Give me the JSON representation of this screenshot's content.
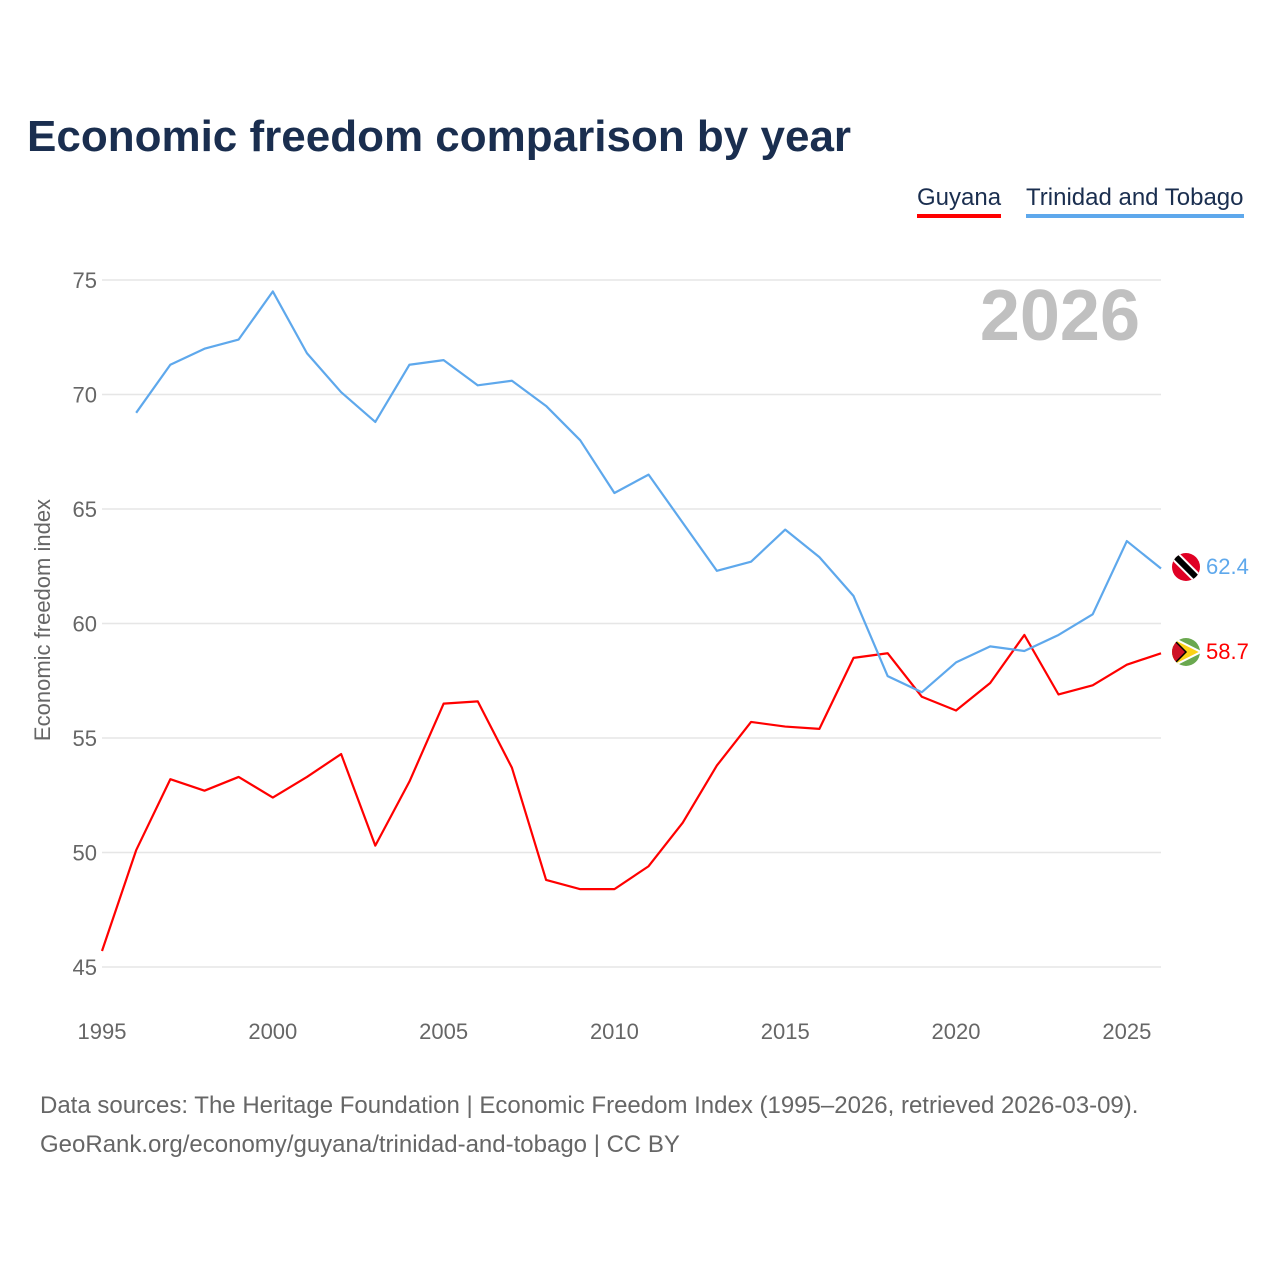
{
  "title": "Economic freedom comparison by year",
  "year_badge": "2026",
  "source_line1": "Data sources: The Heritage Foundation | Economic Freedom Index (1995–2026, retrieved 2026-03-09).",
  "source_line2": "GeoRank.org/economy/guyana/trinidad-and-tobago | CC BY",
  "chart_data": {
    "type": "line",
    "title": "Economic freedom comparison by year",
    "xlabel": "",
    "ylabel": "Economic freedom index",
    "xlim": [
      1995,
      2026
    ],
    "ylim": [
      45,
      75
    ],
    "x_ticks": [
      "1995",
      "2000",
      "2005",
      "2010",
      "2015",
      "2020",
      "2025"
    ],
    "y_ticks": [
      "45",
      "50",
      "55",
      "60",
      "65",
      "70",
      "75"
    ],
    "grid": true,
    "legend_placement": "top-right",
    "series": [
      {
        "name": "Guyana",
        "color": "#ff0000",
        "end_label": "58.7",
        "x": [
          1995,
          1996,
          1997,
          1998,
          1999,
          2000,
          2001,
          2002,
          2003,
          2004,
          2005,
          2006,
          2007,
          2008,
          2009,
          2010,
          2011,
          2012,
          2013,
          2014,
          2015,
          2016,
          2017,
          2018,
          2019,
          2020,
          2021,
          2022,
          2023,
          2024,
          2025,
          2026
        ],
        "values": [
          45.7,
          50.1,
          53.2,
          52.7,
          53.3,
          52.4,
          53.3,
          54.3,
          50.3,
          53.1,
          56.5,
          56.6,
          53.7,
          48.8,
          48.4,
          48.4,
          49.4,
          51.3,
          53.8,
          55.7,
          55.5,
          55.4,
          58.5,
          58.7,
          56.8,
          56.2,
          57.4,
          59.5,
          56.9,
          57.3,
          58.2,
          58.7
        ]
      },
      {
        "name": "Trinidad and Tobago",
        "color": "#5ea8ec",
        "end_label": "62.4",
        "x": [
          1996,
          1997,
          1998,
          1999,
          2000,
          2001,
          2002,
          2003,
          2004,
          2005,
          2006,
          2007,
          2008,
          2009,
          2010,
          2011,
          2012,
          2013,
          2014,
          2015,
          2016,
          2017,
          2018,
          2019,
          2020,
          2021,
          2022,
          2023,
          2024,
          2025,
          2026
        ],
        "values": [
          69.2,
          71.3,
          72.0,
          72.4,
          74.5,
          71.8,
          70.1,
          68.8,
          71.3,
          71.5,
          70.4,
          70.6,
          69.5,
          68.0,
          65.7,
          66.5,
          64.4,
          62.3,
          62.7,
          64.1,
          62.9,
          61.2,
          57.7,
          57.0,
          58.3,
          59.0,
          58.8,
          59.5,
          60.4,
          63.6,
          62.4
        ]
      }
    ]
  }
}
